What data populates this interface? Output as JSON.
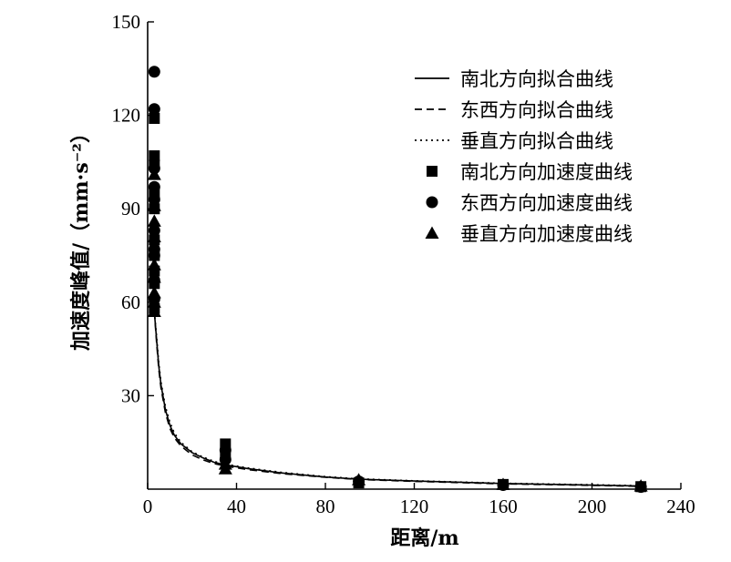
{
  "chart_data": {
    "type": "scatter",
    "xlabel": "距离/m",
    "ylabel": "加速度峰值/（mm·s⁻²）",
    "xlim": [
      0,
      240
    ],
    "ylim": [
      0,
      150
    ],
    "x_ticks": [
      0,
      40,
      80,
      120,
      160,
      200,
      240
    ],
    "y_ticks": [
      30,
      60,
      90,
      120,
      150
    ],
    "grid": false,
    "legend_position": "top-right",
    "fit_curves": [
      {
        "name": "南北方向拟合曲线",
        "style": "solid",
        "x": [
          3,
          4,
          5,
          6,
          8,
          10,
          12,
          15,
          20,
          25,
          30,
          35,
          45,
          60,
          80,
          95,
          120,
          160,
          200,
          222
        ],
        "y": [
          57,
          48,
          39.5,
          33.5,
          25.5,
          20.5,
          17.3,
          14.5,
          11.7,
          10,
          8.6,
          7.8,
          6.6,
          5.2,
          3.9,
          3.2,
          2.6,
          1.8,
          1.3,
          1.0
        ]
      },
      {
        "name": "东西方向拟合曲线",
        "style": "dashed",
        "x": [
          3,
          4,
          5,
          6,
          8,
          10,
          12,
          15,
          20,
          25,
          30,
          35,
          45,
          60,
          80,
          95,
          120,
          160,
          200,
          222
        ],
        "y": [
          57,
          47,
          38.5,
          32.5,
          24.5,
          19.5,
          16.5,
          13.8,
          11,
          9.4,
          8.2,
          7.4,
          6.3,
          5,
          3.8,
          3.1,
          2.5,
          1.7,
          1.2,
          0.9
        ]
      },
      {
        "name": "垂直方向拟合曲线",
        "style": "dotted",
        "x": [
          3,
          4,
          5,
          6,
          8,
          10,
          12,
          15,
          20,
          25,
          30,
          35,
          45,
          60,
          80,
          95,
          120,
          160,
          200,
          222
        ],
        "y": [
          57,
          49,
          40.5,
          34.5,
          26.5,
          21.5,
          18,
          15,
          12,
          10.3,
          8.9,
          8,
          6.8,
          5.4,
          4,
          3.3,
          2.7,
          1.9,
          1.4,
          1.1
        ]
      }
    ],
    "scatter_series": [
      {
        "name": "南北方向加速度曲线",
        "marker": "square",
        "x": [
          3,
          3,
          3,
          3,
          3,
          3,
          3,
          3,
          3,
          3,
          35,
          35,
          95,
          160,
          222
        ],
        "y": [
          119,
          107,
          104,
          95,
          90,
          80,
          75,
          70,
          66,
          58,
          14.5,
          11,
          2,
          1.5,
          0.8
        ]
      },
      {
        "name": "东西方向加速度曲线",
        "marker": "circle",
        "x": [
          3,
          3,
          3,
          3,
          3,
          3,
          3,
          3,
          3,
          3,
          35,
          35,
          95,
          160,
          222
        ],
        "y": [
          134,
          122,
          103,
          97,
          93,
          83,
          77,
          75,
          67,
          61,
          12.5,
          9.5,
          2.5,
          1.3,
          0.7
        ]
      },
      {
        "name": "垂直方向加速度曲线",
        "marker": "triangle",
        "x": [
          3,
          3,
          3,
          3,
          3,
          3,
          3,
          3,
          3,
          35,
          35,
          95,
          160,
          222
        ],
        "y": [
          101,
          91,
          86,
          81,
          72,
          68,
          63,
          60,
          57,
          8,
          6.5,
          3,
          1.5,
          1
        ]
      }
    ]
  }
}
